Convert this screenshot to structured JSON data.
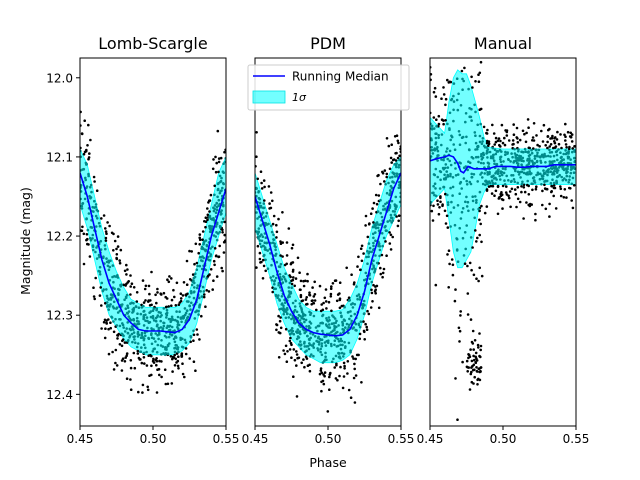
{
  "chart_data": [
    {
      "type": "scatter",
      "title": "Lomb-Scargle",
      "ylabel": "Magnitude (mag)",
      "xlim": [
        0.45,
        0.55
      ],
      "ylim": [
        12.44,
        11.975
      ],
      "xticks": [
        "0.45",
        "0.50",
        "0.55"
      ],
      "yticks": [
        "12.0",
        "12.1",
        "12.2",
        "12.3",
        "12.4"
      ],
      "median": [
        [
          0.45,
          12.12
        ],
        [
          0.455,
          12.15
        ],
        [
          0.46,
          12.19
        ],
        [
          0.465,
          12.23
        ],
        [
          0.47,
          12.26
        ],
        [
          0.475,
          12.28
        ],
        [
          0.48,
          12.3
        ],
        [
          0.485,
          12.31
        ],
        [
          0.49,
          12.318
        ],
        [
          0.495,
          12.32
        ],
        [
          0.5,
          12.32
        ],
        [
          0.505,
          12.32
        ],
        [
          0.51,
          12.321
        ],
        [
          0.515,
          12.322
        ],
        [
          0.52,
          12.318
        ],
        [
          0.525,
          12.305
        ],
        [
          0.53,
          12.28
        ],
        [
          0.535,
          12.24
        ],
        [
          0.54,
          12.2
        ],
        [
          0.545,
          12.17
        ],
        [
          0.55,
          12.14
        ]
      ],
      "band": [
        [
          0.45,
          12.09,
          12.16
        ],
        [
          0.455,
          12.11,
          12.19
        ],
        [
          0.46,
          12.15,
          12.23
        ],
        [
          0.465,
          12.19,
          12.27
        ],
        [
          0.47,
          12.22,
          12.3
        ],
        [
          0.475,
          12.245,
          12.315
        ],
        [
          0.48,
          12.265,
          12.33
        ],
        [
          0.485,
          12.28,
          12.34
        ],
        [
          0.49,
          12.285,
          12.345
        ],
        [
          0.495,
          12.29,
          12.35
        ],
        [
          0.5,
          12.29,
          12.35
        ],
        [
          0.505,
          12.29,
          12.35
        ],
        [
          0.51,
          12.29,
          12.35
        ],
        [
          0.515,
          12.29,
          12.35
        ],
        [
          0.52,
          12.285,
          12.345
        ],
        [
          0.525,
          12.27,
          12.335
        ],
        [
          0.53,
          12.24,
          12.31
        ],
        [
          0.535,
          12.2,
          12.27
        ],
        [
          0.54,
          12.16,
          12.23
        ],
        [
          0.545,
          12.12,
          12.2
        ],
        [
          0.55,
          12.1,
          12.17
        ]
      ]
    },
    {
      "type": "scatter",
      "title": "PDM",
      "xlabel": "Phase",
      "xlim": [
        0.45,
        0.55
      ],
      "ylim": [
        12.44,
        11.975
      ],
      "xticks": [
        "0.45",
        "0.50",
        "0.55"
      ],
      "median": [
        [
          0.45,
          12.15
        ],
        [
          0.455,
          12.18
        ],
        [
          0.46,
          12.21
        ],
        [
          0.465,
          12.245
        ],
        [
          0.47,
          12.275
        ],
        [
          0.475,
          12.295
        ],
        [
          0.48,
          12.31
        ],
        [
          0.485,
          12.318
        ],
        [
          0.49,
          12.322
        ],
        [
          0.495,
          12.324
        ],
        [
          0.5,
          12.325
        ],
        [
          0.505,
          12.326
        ],
        [
          0.51,
          12.325
        ],
        [
          0.515,
          12.318
        ],
        [
          0.52,
          12.3
        ],
        [
          0.525,
          12.27
        ],
        [
          0.53,
          12.23
        ],
        [
          0.535,
          12.2
        ],
        [
          0.54,
          12.17
        ],
        [
          0.545,
          12.14
        ],
        [
          0.55,
          12.12
        ]
      ],
      "band": [
        [
          0.45,
          12.12,
          12.19
        ],
        [
          0.455,
          12.15,
          12.22
        ],
        [
          0.46,
          12.18,
          12.25
        ],
        [
          0.465,
          12.21,
          12.285
        ],
        [
          0.47,
          12.24,
          12.31
        ],
        [
          0.475,
          12.26,
          12.33
        ],
        [
          0.48,
          12.28,
          12.34
        ],
        [
          0.485,
          12.29,
          12.35
        ],
        [
          0.49,
          12.295,
          12.355
        ],
        [
          0.495,
          12.295,
          12.36
        ],
        [
          0.5,
          12.295,
          12.36
        ],
        [
          0.505,
          12.295,
          12.36
        ],
        [
          0.51,
          12.293,
          12.357
        ],
        [
          0.515,
          12.28,
          12.35
        ],
        [
          0.52,
          12.26,
          12.33
        ],
        [
          0.525,
          12.23,
          12.3
        ],
        [
          0.53,
          12.19,
          12.26
        ],
        [
          0.535,
          12.16,
          12.23
        ],
        [
          0.54,
          12.13,
          12.2
        ],
        [
          0.545,
          12.11,
          12.18
        ],
        [
          0.55,
          12.1,
          12.16
        ]
      ]
    },
    {
      "type": "scatter",
      "title": "Manual",
      "xlim": [
        0.45,
        0.55
      ],
      "ylim": [
        12.44,
        11.975
      ],
      "xticks": [
        "0.45",
        "0.50",
        "0.55"
      ],
      "median": [
        [
          0.45,
          12.105
        ],
        [
          0.455,
          12.102
        ],
        [
          0.46,
          12.1
        ],
        [
          0.463,
          12.098
        ],
        [
          0.466,
          12.1
        ],
        [
          0.469,
          12.108
        ],
        [
          0.471,
          12.118
        ],
        [
          0.473,
          12.12
        ],
        [
          0.476,
          12.112
        ],
        [
          0.48,
          12.115
        ],
        [
          0.485,
          12.115
        ],
        [
          0.49,
          12.115
        ],
        [
          0.495,
          12.112
        ],
        [
          0.5,
          12.112
        ],
        [
          0.505,
          12.112
        ],
        [
          0.51,
          12.113
        ],
        [
          0.515,
          12.113
        ],
        [
          0.52,
          12.112
        ],
        [
          0.525,
          12.112
        ],
        [
          0.53,
          12.112
        ],
        [
          0.535,
          12.11
        ],
        [
          0.54,
          12.11
        ],
        [
          0.545,
          12.11
        ],
        [
          0.55,
          12.11
        ]
      ],
      "band": [
        [
          0.45,
          12.05,
          12.16
        ],
        [
          0.455,
          12.06,
          12.15
        ],
        [
          0.46,
          12.07,
          12.14
        ],
        [
          0.463,
          12.03,
          12.18
        ],
        [
          0.466,
          12.0,
          12.22
        ],
        [
          0.469,
          11.99,
          12.24
        ],
        [
          0.472,
          11.995,
          12.24
        ],
        [
          0.475,
          11.995,
          12.23
        ],
        [
          0.478,
          12.01,
          12.22
        ],
        [
          0.481,
          12.03,
          12.19
        ],
        [
          0.484,
          12.05,
          12.16
        ],
        [
          0.487,
          12.075,
          12.145
        ],
        [
          0.49,
          12.088,
          12.135
        ],
        [
          0.5,
          12.09,
          12.135
        ],
        [
          0.51,
          12.09,
          12.135
        ],
        [
          0.52,
          12.09,
          12.135
        ],
        [
          0.53,
          12.09,
          12.135
        ],
        [
          0.54,
          12.09,
          12.135
        ],
        [
          0.55,
          12.09,
          12.135
        ]
      ]
    }
  ],
  "legend": {
    "median_label": "Running Median",
    "band_label": "1σ"
  },
  "colors": {
    "median": "#0000ff",
    "band": "#00ffff",
    "points_dark": "#000000",
    "points_teal": "#008b8b"
  }
}
